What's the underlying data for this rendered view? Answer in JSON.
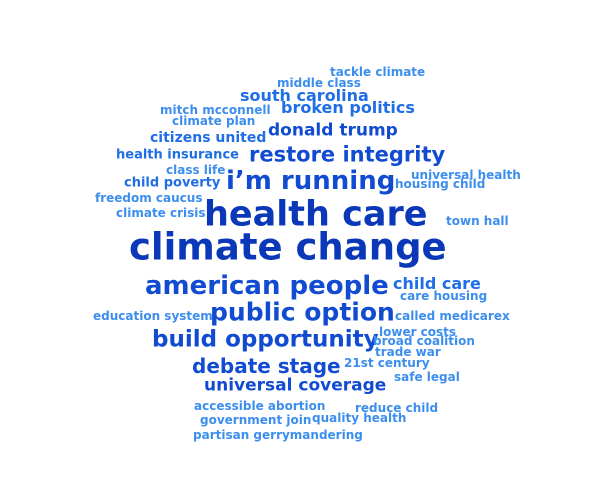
{
  "words": [
    {
      "text": "tackle climate"
    },
    {
      "text": "middle class"
    },
    {
      "text": "south carolina"
    },
    {
      "text": "mitch mcconnell"
    },
    {
      "text": "broken politics"
    },
    {
      "text": "climate plan"
    },
    {
      "text": "donald trump"
    },
    {
      "text": "citizens united"
    },
    {
      "text": "health insurance"
    },
    {
      "text": "restore integrity"
    },
    {
      "text": "class life"
    },
    {
      "text": "universal health"
    },
    {
      "text": "child poverty"
    },
    {
      "text": "i’m running"
    },
    {
      "text": "housing child"
    },
    {
      "text": "freedom caucus"
    },
    {
      "text": "health care"
    },
    {
      "text": "climate crisis"
    },
    {
      "text": "town hall"
    },
    {
      "text": "climate change"
    },
    {
      "text": "american people"
    },
    {
      "text": "child care"
    },
    {
      "text": "care housing"
    },
    {
      "text": "education system"
    },
    {
      "text": "public option"
    },
    {
      "text": "called medicarex"
    },
    {
      "text": "lower costs"
    },
    {
      "text": "build opportunity"
    },
    {
      "text": "broad coalition"
    },
    {
      "text": "trade war"
    },
    {
      "text": "21st century"
    },
    {
      "text": "debate stage"
    },
    {
      "text": "safe legal"
    },
    {
      "text": "universal coverage"
    },
    {
      "text": "accessible abortion"
    },
    {
      "text": "reduce child"
    },
    {
      "text": "government join"
    },
    {
      "text": "quality health"
    },
    {
      "text": "partisan gerrymandering"
    }
  ],
  "colors": {
    "c1": "#0a38b8",
    "c2": "#114bd1",
    "c3": "#1f6ee6",
    "c4": "#3c8eee",
    "c5": "#52a6f4",
    "background": "#ffffff"
  }
}
